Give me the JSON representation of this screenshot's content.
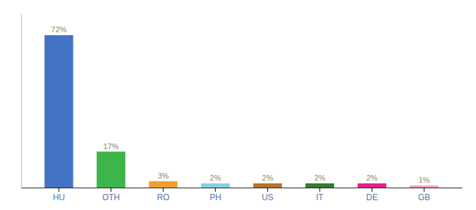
{
  "chart_data": {
    "type": "bar",
    "categories": [
      "HU",
      "OTH",
      "RO",
      "PH",
      "US",
      "IT",
      "DE",
      "GB"
    ],
    "values": [
      72,
      17,
      3,
      2,
      2,
      2,
      2,
      1
    ],
    "value_labels": [
      "72%",
      "17%",
      "3%",
      "2%",
      "2%",
      "2%",
      "2%",
      "1%"
    ],
    "colors": [
      "#4472C4",
      "#3DB54A",
      "#F0A030",
      "#87CEEB",
      "#B8712A",
      "#2E7D32",
      "#E91E8C",
      "#F4A0B5"
    ],
    "ylim": [
      0,
      82
    ],
    "grid": false,
    "data_labels": true,
    "tick_labels": "x"
  }
}
